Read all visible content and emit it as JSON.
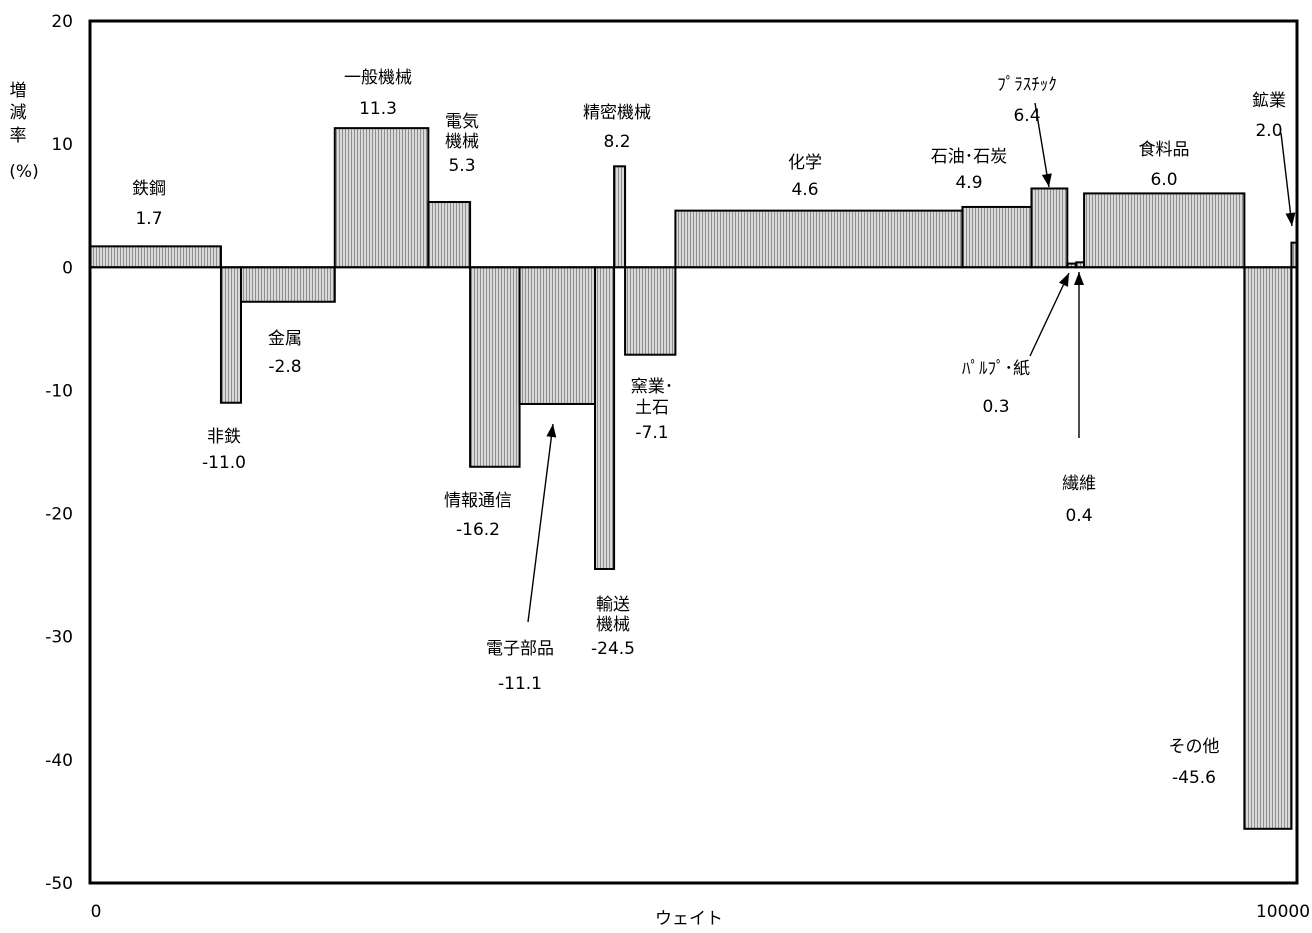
{
  "chart_data": {
    "type": "bar",
    "subtype": "variable-width",
    "xlabel": "ウェイト",
    "ylabel": [
      "増",
      "減",
      "率"
    ],
    "yunit": "(%)",
    "xlim": [
      0,
      10000
    ],
    "ylim": [
      -50,
      20
    ],
    "x_tick_labels": [
      "0",
      "10000"
    ],
    "y_ticks": [
      20,
      10,
      0,
      -10,
      -20,
      -30,
      -40,
      -50
    ],
    "bar_fill": "#b4b4b4",
    "series": [
      {
        "name": "鉄鋼",
        "label_lines": [
          "鉄鋼"
        ],
        "value_label": "1.7",
        "x0": 0,
        "x1": 1085,
        "value": 1.7
      },
      {
        "name": "非鉄",
        "label_lines": [
          "非鉄"
        ],
        "value_label": "-11.0",
        "x0": 1085,
        "x1": 1251,
        "value": -11.0
      },
      {
        "name": "金属",
        "label_lines": [
          "金属"
        ],
        "value_label": "-2.8",
        "x0": 1251,
        "x1": 2028,
        "value": -2.8
      },
      {
        "name": "一般機械",
        "label_lines": [
          "一般機械"
        ],
        "value_label": "11.3",
        "x0": 2028,
        "x1": 2803,
        "value": 11.3
      },
      {
        "name": "電気機械",
        "label_lines": [
          "電気",
          "機械"
        ],
        "value_label": "5.3",
        "x0": 2803,
        "x1": 3149,
        "value": 5.3
      },
      {
        "name": "情報通信",
        "label_lines": [
          "情報通信"
        ],
        "value_label": "-16.2",
        "x0": 3149,
        "x1": 3559,
        "value": -16.2
      },
      {
        "name": "電子部品",
        "label_lines": [
          "電子部品"
        ],
        "value_label": "-11.1",
        "x0": 3559,
        "x1": 4184,
        "value": -11.1
      },
      {
        "name": "輸送機械",
        "label_lines": [
          "輸送",
          "機械"
        ],
        "value_label": "-24.5",
        "x0": 4184,
        "x1": 4342,
        "value": -24.5
      },
      {
        "name": "精密機械",
        "label_lines": [
          "精密機械"
        ],
        "value_label": "8.2",
        "x0": 4342,
        "x1": 4433,
        "value": 8.2
      },
      {
        "name": "窯業・土石",
        "label_lines": [
          "窯業･",
          "土石"
        ],
        "value_label": "-7.1",
        "x0": 4433,
        "x1": 4850,
        "value": -7.1
      },
      {
        "name": "化学",
        "label_lines": [
          "化学"
        ],
        "value_label": "4.6",
        "x0": 4850,
        "x1": 7228,
        "value": 4.6
      },
      {
        "name": "石油・石炭",
        "label_lines": [
          "石油･石炭"
        ],
        "value_label": "4.9",
        "x0": 7228,
        "x1": 7800,
        "value": 4.9
      },
      {
        "name": "プラスチック",
        "label_lines": [
          "ﾌﾟﾗｽﾁｯｸ"
        ],
        "value_label": "6.4",
        "x0": 7800,
        "x1": 8097,
        "value": 6.4
      },
      {
        "name": "パルプ・紙",
        "label_lines": [
          "ﾊﾟﾙﾌﾟ･紙"
        ],
        "value_label": "0.3",
        "x0": 8097,
        "x1": 8171,
        "value": 0.3
      },
      {
        "name": "繊維",
        "label_lines": [
          "繊維"
        ],
        "value_label": "0.4",
        "x0": 8171,
        "x1": 8236,
        "value": 0.4
      },
      {
        "name": "食料品",
        "label_lines": [
          "食料品"
        ],
        "value_label": "6.0",
        "x0": 8236,
        "x1": 9564,
        "value": 6.0
      },
      {
        "name": "その他",
        "label_lines": [
          "その他"
        ],
        "value_label": "-45.6",
        "x0": 9564,
        "x1": 9954,
        "value": -45.6
      },
      {
        "name": "鉱業",
        "label_lines": [
          "鉱業"
        ],
        "value_label": "2.0",
        "x0": 9954,
        "x1": 10000,
        "value": 2.0
      }
    ]
  }
}
